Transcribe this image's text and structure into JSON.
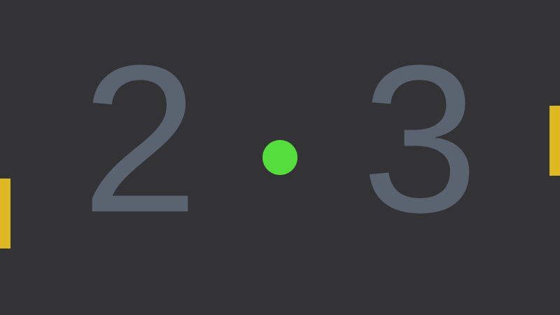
{
  "scoreboard": {
    "left_score": "2",
    "right_score": "3"
  },
  "colors": {
    "background": "#333335",
    "score_text": "#5A6370",
    "paddle": "#DDB822",
    "ball": "#55DD3E"
  },
  "elements": {
    "left_paddle": "paddle",
    "right_paddle": "paddle",
    "ball": "ball"
  }
}
